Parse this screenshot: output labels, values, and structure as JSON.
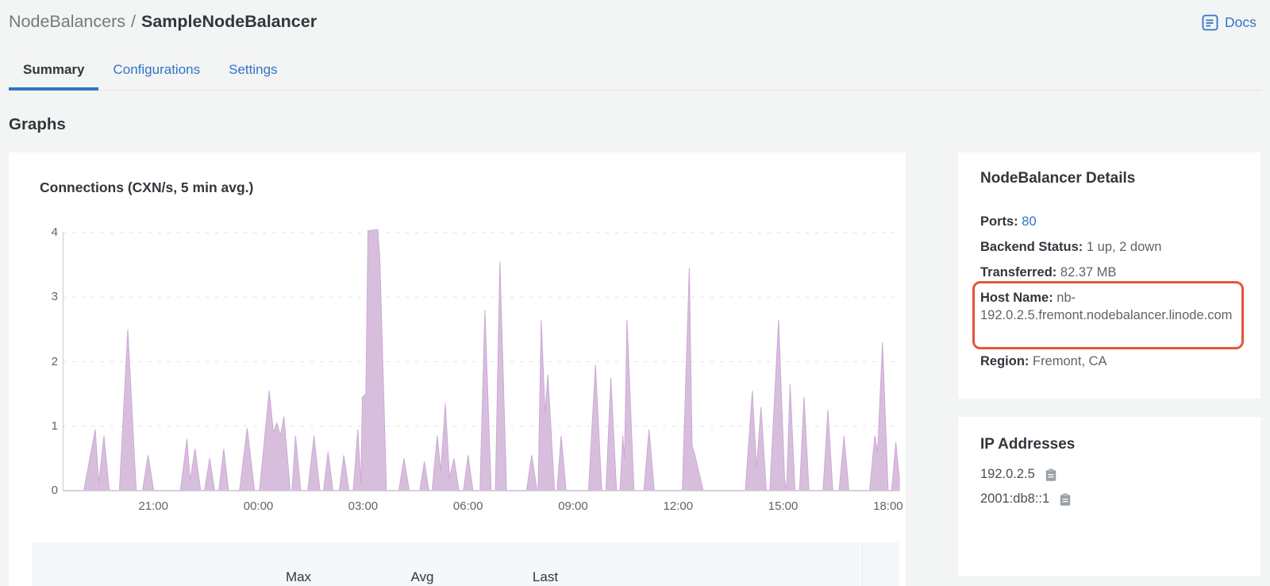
{
  "header": {
    "breadcrumb": {
      "parent": "NodeBalancers",
      "separator": "/",
      "current": "SampleNodeBalancer"
    },
    "docs_label": "Docs"
  },
  "tabs": [
    {
      "label": "Summary",
      "active": true
    },
    {
      "label": "Configurations",
      "active": false
    },
    {
      "label": "Settings",
      "active": false
    }
  ],
  "section_title": "Graphs",
  "stats_table": {
    "headers": [
      "Max",
      "Avg",
      "Last"
    ]
  },
  "details_panel": {
    "title": "NodeBalancer Details",
    "rows": [
      {
        "label": "Ports:",
        "value": "80"
      },
      {
        "label": "Backend Status:",
        "value": "1 up, 2 down"
      },
      {
        "label": "Transferred:",
        "value": "82.37 MB"
      },
      {
        "label": "Host Name:",
        "value": "nb-192.0.2.5.fremont.nodebalancer.linode.com"
      },
      {
        "label": "Region:",
        "value": "Fremont, CA"
      }
    ],
    "highlight": {
      "row": "Host Name",
      "color": "#e2573b"
    }
  },
  "ip_panel": {
    "title": "IP Addresses",
    "ips": [
      "192.0.2.5",
      "2001:db8::1"
    ]
  },
  "colors": {
    "link_blue": "#2f75c9",
    "page_background": "#f3f4f4",
    "highlight_red": "#e2573b"
  },
  "chart_data": {
    "type": "area",
    "title": "Connections (CXN/s, 5 min avg.)",
    "ylabel": "",
    "xlabel": "",
    "ylim": [
      0,
      4
    ],
    "y_ticks": [
      0,
      1,
      2,
      3,
      4
    ],
    "x_range": [
      0,
      23.9
    ],
    "x_ticks": [
      {
        "t": 2.59,
        "label": "21:00"
      },
      {
        "t": 5.59,
        "label": "00:00"
      },
      {
        "t": 8.58,
        "label": "03:00"
      },
      {
        "t": 11.58,
        "label": "06:00"
      },
      {
        "t": 14.58,
        "label": "09:00"
      },
      {
        "t": 17.58,
        "label": "12:00"
      },
      {
        "t": 20.58,
        "label": "15:00"
      },
      {
        "t": 23.58,
        "label": "18:00"
      }
    ],
    "grid": true,
    "legend": "none",
    "fill_color": "#d8bedd",
    "line_color": "#cbaad3",
    "grid_color": "#e0e2e6",
    "axis_color": "#c9ccce",
    "points": [
      [
        0,
        0
      ],
      [
        0.6,
        0
      ],
      [
        0.93,
        0.95
      ],
      [
        1.03,
        0.12
      ],
      [
        1.18,
        0.85
      ],
      [
        1.33,
        0
      ],
      [
        1.62,
        0
      ],
      [
        1.86,
        2.5
      ],
      [
        2.1,
        0
      ],
      [
        2.28,
        0
      ],
      [
        2.44,
        0.55
      ],
      [
        2.6,
        0
      ],
      [
        3.36,
        0
      ],
      [
        3.55,
        0.8
      ],
      [
        3.64,
        0.15
      ],
      [
        3.78,
        0.65
      ],
      [
        3.94,
        0
      ],
      [
        4.05,
        0
      ],
      [
        4.2,
        0.5
      ],
      [
        4.34,
        0
      ],
      [
        4.46,
        0
      ],
      [
        4.6,
        0.65
      ],
      [
        4.74,
        0
      ],
      [
        5.05,
        0
      ],
      [
        5.27,
        0.97
      ],
      [
        5.48,
        0
      ],
      [
        5.62,
        0
      ],
      [
        5.9,
        1.55
      ],
      [
        6.02,
        0.9
      ],
      [
        6.12,
        1.05
      ],
      [
        6.22,
        0.85
      ],
      [
        6.32,
        1.15
      ],
      [
        6.5,
        0
      ],
      [
        6.55,
        0
      ],
      [
        6.65,
        0.85
      ],
      [
        6.8,
        0
      ],
      [
        7.0,
        0
      ],
      [
        7.18,
        0.85
      ],
      [
        7.35,
        0
      ],
      [
        7.45,
        0
      ],
      [
        7.58,
        0.6
      ],
      [
        7.72,
        0
      ],
      [
        7.9,
        0
      ],
      [
        8.03,
        0.55
      ],
      [
        8.18,
        0
      ],
      [
        8.3,
        0
      ],
      [
        8.43,
        0.95
      ],
      [
        8.52,
        0.1
      ],
      [
        8.56,
        1.45
      ],
      [
        8.66,
        1.5
      ],
      [
        8.72,
        4.03
      ],
      [
        9.0,
        4.05
      ],
      [
        9.06,
        3.6
      ],
      [
        9.25,
        0
      ],
      [
        9.6,
        0
      ],
      [
        9.75,
        0.5
      ],
      [
        9.9,
        0
      ],
      [
        10.2,
        0
      ],
      [
        10.33,
        0.45
      ],
      [
        10.46,
        0
      ],
      [
        10.55,
        0
      ],
      [
        10.7,
        0.85
      ],
      [
        10.8,
        0.3
      ],
      [
        10.93,
        1.35
      ],
      [
        11.05,
        0.2
      ],
      [
        11.18,
        0.5
      ],
      [
        11.32,
        0
      ],
      [
        11.45,
        0
      ],
      [
        11.58,
        0.55
      ],
      [
        11.72,
        0
      ],
      [
        11.92,
        0
      ],
      [
        12.06,
        2.8
      ],
      [
        12.24,
        0
      ],
      [
        12.36,
        0
      ],
      [
        12.49,
        3.55
      ],
      [
        12.68,
        0
      ],
      [
        13.25,
        0
      ],
      [
        13.4,
        0.55
      ],
      [
        13.55,
        0
      ],
      [
        13.58,
        0
      ],
      [
        13.67,
        2.65
      ],
      [
        13.78,
        1.2
      ],
      [
        13.86,
        1.8
      ],
      [
        14.05,
        0
      ],
      [
        14.12,
        0
      ],
      [
        14.24,
        0.85
      ],
      [
        14.38,
        0
      ],
      [
        15.02,
        0
      ],
      [
        15.22,
        1.95
      ],
      [
        15.4,
        0
      ],
      [
        15.52,
        0
      ],
      [
        15.66,
        1.75
      ],
      [
        15.82,
        0
      ],
      [
        15.92,
        0
      ],
      [
        16.0,
        0.85
      ],
      [
        16.05,
        0.5
      ],
      [
        16.12,
        2.65
      ],
      [
        16.32,
        0
      ],
      [
        16.6,
        0
      ],
      [
        16.75,
        0.95
      ],
      [
        16.9,
        0
      ],
      [
        17.7,
        0
      ],
      [
        17.9,
        3.45
      ],
      [
        17.98,
        0.7
      ],
      [
        18.06,
        0.55
      ],
      [
        18.3,
        0
      ],
      [
        19.5,
        0
      ],
      [
        19.7,
        1.55
      ],
      [
        19.82,
        0.35
      ],
      [
        19.95,
        1.3
      ],
      [
        20.1,
        0
      ],
      [
        20.2,
        0
      ],
      [
        20.45,
        2.65
      ],
      [
        20.62,
        0.2
      ],
      [
        20.68,
        0
      ],
      [
        20.78,
        1.65
      ],
      [
        20.92,
        0
      ],
      [
        21.05,
        0
      ],
      [
        21.18,
        1.45
      ],
      [
        21.32,
        0
      ],
      [
        21.72,
        0
      ],
      [
        21.86,
        1.25
      ],
      [
        22.0,
        0
      ],
      [
        22.18,
        0
      ],
      [
        22.32,
        0.85
      ],
      [
        22.46,
        0
      ],
      [
        23.05,
        0
      ],
      [
        23.2,
        0.85
      ],
      [
        23.28,
        0.6
      ],
      [
        23.42,
        2.3
      ],
      [
        23.58,
        0
      ],
      [
        23.68,
        0
      ],
      [
        23.8,
        0.75
      ],
      [
        23.9,
        0.2
      ]
    ]
  }
}
